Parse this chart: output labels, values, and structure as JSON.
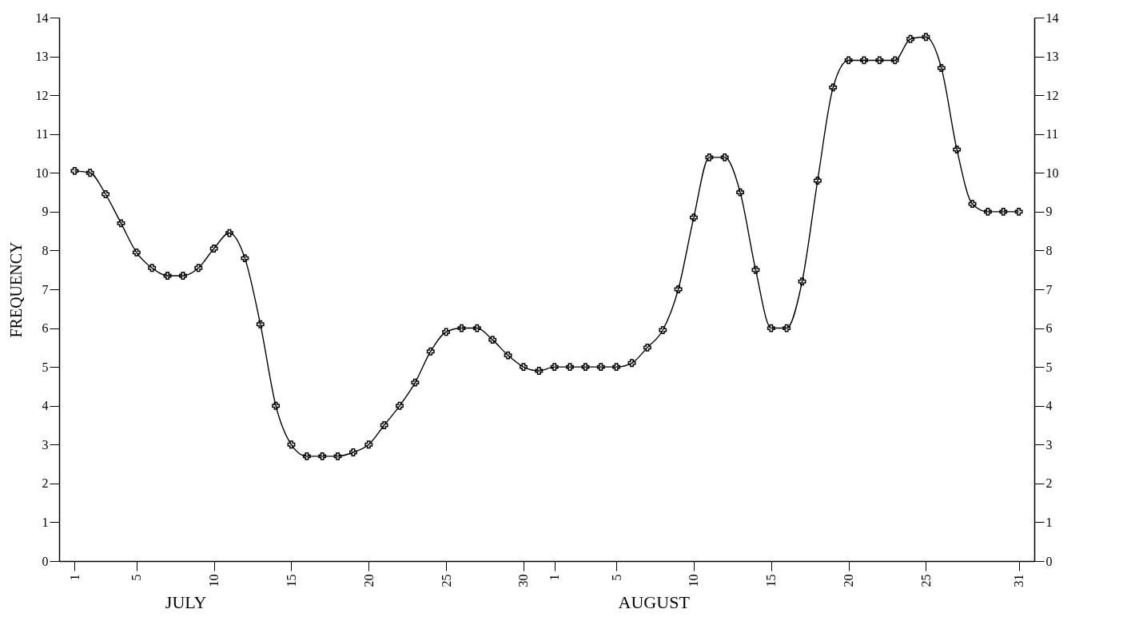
{
  "chart_data": {
    "type": "line",
    "ylabel": "FREQUENCY",
    "categories": [
      "1",
      null,
      null,
      null,
      "5",
      null,
      null,
      null,
      null,
      "10",
      null,
      null,
      null,
      null,
      "15",
      null,
      null,
      null,
      null,
      "20",
      null,
      null,
      null,
      null,
      "25",
      null,
      null,
      null,
      null,
      "30",
      null,
      "1",
      null,
      null,
      null,
      "5",
      null,
      null,
      null,
      null,
      "10",
      null,
      null,
      null,
      null,
      "15",
      null,
      null,
      null,
      null,
      "20",
      null,
      null,
      null,
      null,
      "25",
      null,
      null,
      null,
      null,
      null,
      "31"
    ],
    "series": [
      {
        "color": "#000000",
        "values": [
          10.05,
          10.0,
          9.45,
          8.7,
          7.95,
          7.55,
          7.35,
          7.35,
          7.55,
          8.05,
          8.45,
          7.8,
          6.1,
          4.0,
          3.0,
          2.7,
          2.7,
          2.7,
          2.8,
          3.0,
          3.5,
          4.0,
          4.6,
          5.4,
          5.9,
          6.0,
          6.0,
          5.7,
          5.3,
          5.0,
          4.9,
          5.0,
          5.0,
          5.0,
          5.0,
          5.0,
          5.1,
          5.5,
          5.95,
          7.0,
          8.85,
          10.4,
          10.4,
          9.5,
          7.5,
          6.0,
          6.0,
          7.2,
          9.8,
          12.2,
          12.9,
          12.9,
          12.9,
          12.9,
          13.45,
          13.5,
          12.7,
          10.6,
          9.2,
          9.0,
          9.0,
          9.0
        ]
      }
    ],
    "ylim": [
      0,
      14
    ],
    "yticks": [
      0,
      1,
      2,
      3,
      4,
      5,
      6,
      7,
      8,
      9,
      10,
      11,
      12,
      13,
      14
    ],
    "y2lim": [
      0,
      14
    ],
    "y2ticks": [
      0,
      1,
      2,
      3,
      4,
      5,
      6,
      7,
      8,
      9,
      10,
      11,
      12,
      13,
      14
    ],
    "marker": "cross",
    "annotations": [
      "JULY",
      "AUGUST"
    ]
  }
}
